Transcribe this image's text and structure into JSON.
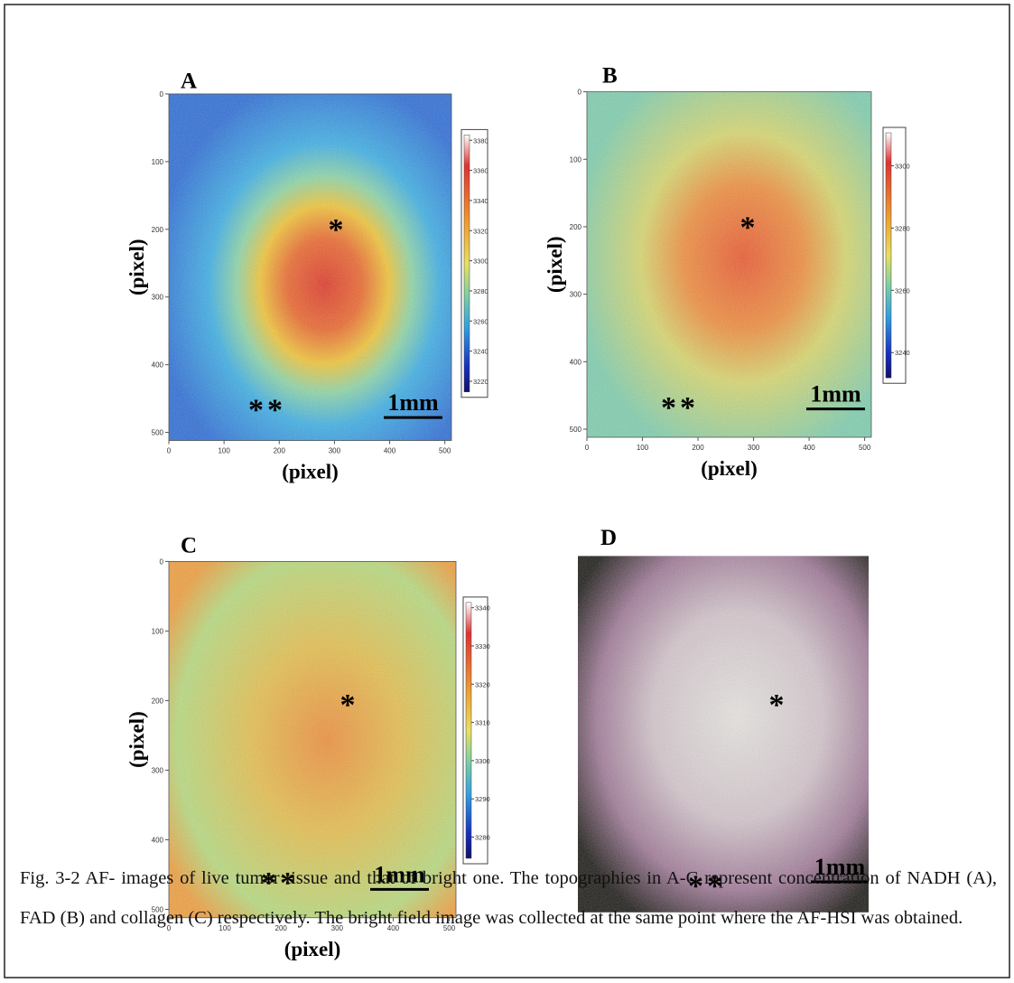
{
  "panels": [
    {
      "label": "A",
      "x_axis_label": "(pixel)",
      "y_axis_label": "(pixel)",
      "xticks": [
        0,
        100,
        200,
        300,
        400,
        500
      ],
      "yticks": [
        0,
        100,
        200,
        300,
        400,
        500
      ],
      "colorbar_ticks": [
        3380,
        3360,
        3340,
        3320,
        3300,
        3280,
        3260,
        3240,
        3220
      ],
      "marker_single": "*",
      "marker_double": "**",
      "scale_bar": "1mm"
    },
    {
      "label": "B",
      "x_axis_label": "(pixel)",
      "y_axis_label": "(pixel)",
      "xticks": [
        0,
        100,
        200,
        300,
        400,
        500
      ],
      "yticks": [
        0,
        100,
        200,
        300,
        400,
        500
      ],
      "colorbar_ticks": [
        3300,
        3280,
        3260,
        3240
      ],
      "marker_single": "*",
      "marker_double": "**",
      "scale_bar": "1mm"
    },
    {
      "label": "C",
      "x_axis_label": "(pixel)",
      "y_axis_label": "(pixel)",
      "xticks": [
        0,
        100,
        200,
        300,
        400,
        500
      ],
      "yticks": [
        0,
        100,
        200,
        300,
        400,
        500
      ],
      "colorbar_ticks": [
        3340,
        3330,
        3320,
        3310,
        3300,
        3290,
        3280
      ],
      "marker_single": "*",
      "marker_double": "**",
      "scale_bar": "1mm"
    },
    {
      "label": "D",
      "marker_single": "*",
      "marker_double": "**",
      "scale_bar": "1mm"
    }
  ],
  "caption": "Fig. 3-2 AF- images of live tumor tissue and that of bright one. The topographies in A-C represent concentration of NADH (A), FAD (B) and collagen (C) respectively. The bright field image was collected at the same point where the AF-HSI was obtained."
}
